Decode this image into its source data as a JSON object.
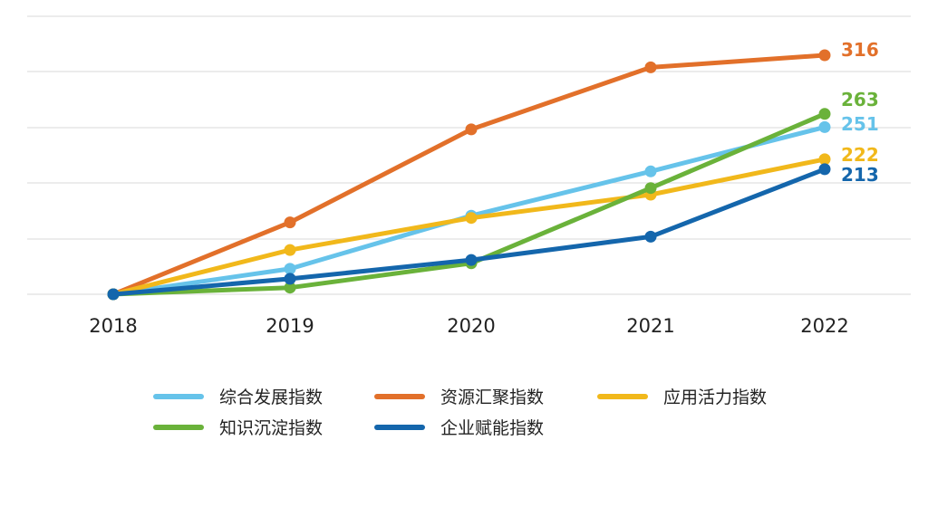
{
  "chart_data": {
    "type": "line",
    "title": "",
    "xlabel": "",
    "ylabel": "",
    "x": [
      "2018",
      "2019",
      "2020",
      "2021",
      "2022"
    ],
    "ylim": [
      100,
      340
    ],
    "grid": true,
    "legend_position": "bottom",
    "series": [
      {
        "name": "综合发展指数",
        "color": "#66C3EA",
        "values": [
          100,
          123,
          171,
          211,
          251
        ]
      },
      {
        "name": "资源汇聚指数",
        "color": "#E2702A",
        "values": [
          100,
          165,
          249,
          305,
          316
        ]
      },
      {
        "name": "应用活力指数",
        "color": "#F1B81B",
        "values": [
          100,
          140,
          169,
          190,
          222
        ]
      },
      {
        "name": "知识沉淀指数",
        "color": "#6AB23A",
        "values": [
          100,
          106,
          128,
          196,
          263
        ]
      },
      {
        "name": "企业赋能指数",
        "color": "#1466AC",
        "values": [
          100,
          114,
          131,
          152,
          213
        ]
      }
    ],
    "end_labels": [
      "251",
      "316",
      "222",
      "263",
      "213"
    ]
  }
}
